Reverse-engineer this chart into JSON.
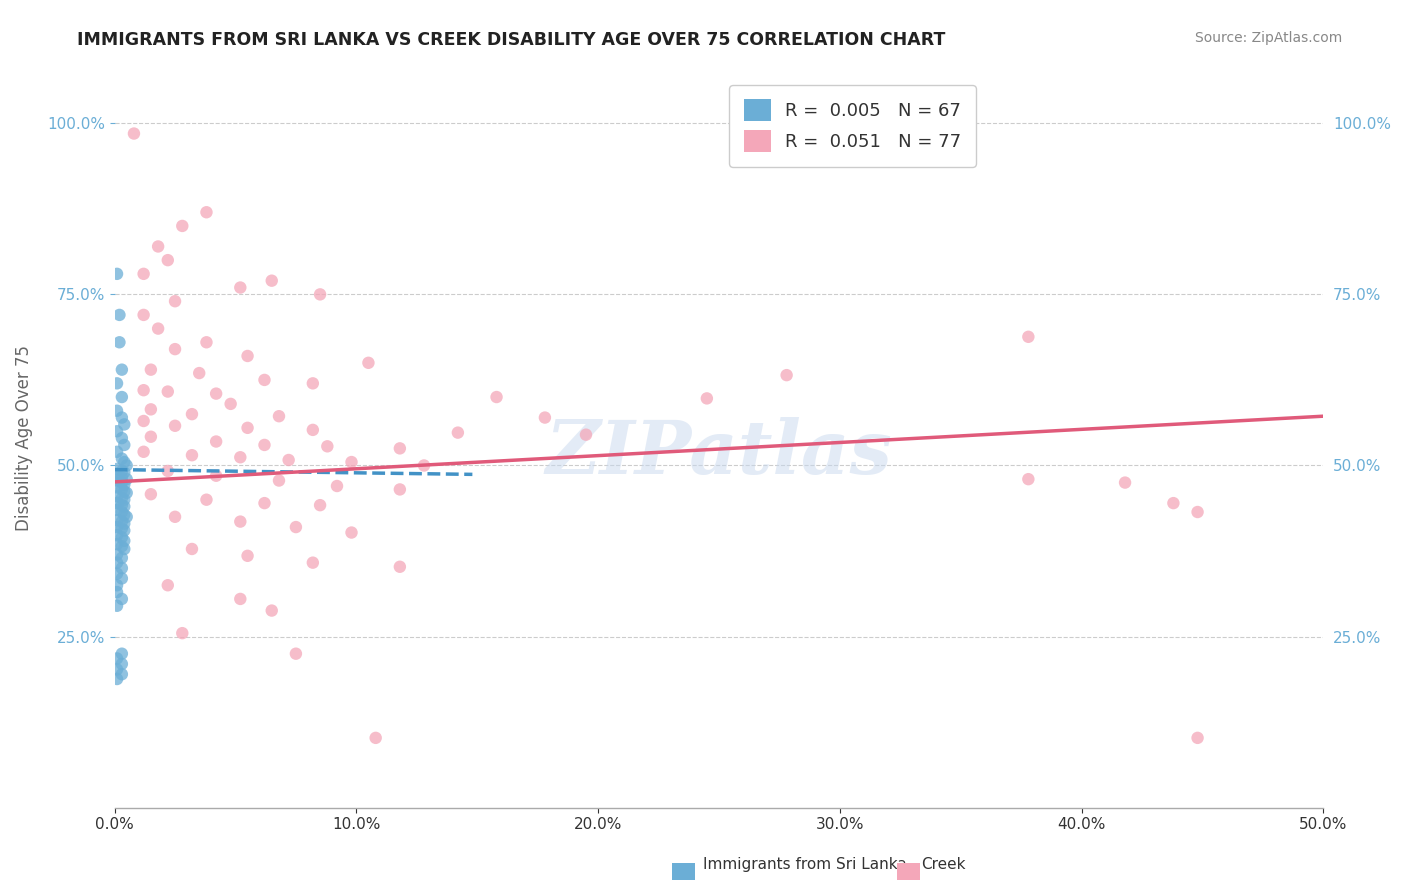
{
  "title": "IMMIGRANTS FROM SRI LANKA VS CREEK DISABILITY AGE OVER 75 CORRELATION CHART",
  "source": "Source: ZipAtlas.com",
  "ylabel": "Disability Age Over 75",
  "xlim": [
    0.0,
    0.5
  ],
  "ylim": [
    0.0,
    1.08
  ],
  "xtick_values": [
    0.0,
    0.1,
    0.2,
    0.3,
    0.4,
    0.5
  ],
  "ytick_values": [
    0.25,
    0.5,
    0.75,
    1.0
  ],
  "legend_entry_1": "R =  0.005   N = 67",
  "legend_entry_2": "R =  0.051   N = 77",
  "watermark": "ZIPatlas",
  "blue_color": "#6baed6",
  "pink_color": "#f4a7b9",
  "blue_line_color": "#4292c6",
  "pink_line_color": "#e05a7a",
  "background_color": "#ffffff",
  "grid_color": "#cccccc",
  "sl_trend_x": [
    0.0,
    0.148
  ],
  "sl_trend_y": [
    0.494,
    0.487
  ],
  "ck_trend_x": [
    0.0,
    0.5
  ],
  "ck_trend_y": [
    0.476,
    0.572
  ],
  "sri_lanka_points": [
    [
      0.001,
      0.78
    ],
    [
      0.002,
      0.72
    ],
    [
      0.002,
      0.68
    ],
    [
      0.003,
      0.64
    ],
    [
      0.001,
      0.62
    ],
    [
      0.003,
      0.6
    ],
    [
      0.001,
      0.58
    ],
    [
      0.003,
      0.57
    ],
    [
      0.004,
      0.56
    ],
    [
      0.001,
      0.55
    ],
    [
      0.003,
      0.54
    ],
    [
      0.004,
      0.53
    ],
    [
      0.001,
      0.52
    ],
    [
      0.003,
      0.51
    ],
    [
      0.004,
      0.505
    ],
    [
      0.005,
      0.5
    ],
    [
      0.001,
      0.495
    ],
    [
      0.003,
      0.492
    ],
    [
      0.004,
      0.49
    ],
    [
      0.001,
      0.485
    ],
    [
      0.003,
      0.482
    ],
    [
      0.005,
      0.48
    ],
    [
      0.001,
      0.478
    ],
    [
      0.003,
      0.475
    ],
    [
      0.004,
      0.472
    ],
    [
      0.001,
      0.468
    ],
    [
      0.003,
      0.465
    ],
    [
      0.004,
      0.462
    ],
    [
      0.005,
      0.46
    ],
    [
      0.001,
      0.455
    ],
    [
      0.003,
      0.452
    ],
    [
      0.004,
      0.45
    ],
    [
      0.001,
      0.445
    ],
    [
      0.003,
      0.442
    ],
    [
      0.004,
      0.44
    ],
    [
      0.001,
      0.435
    ],
    [
      0.003,
      0.432
    ],
    [
      0.004,
      0.428
    ],
    [
      0.005,
      0.425
    ],
    [
      0.001,
      0.42
    ],
    [
      0.003,
      0.418
    ],
    [
      0.004,
      0.415
    ],
    [
      0.001,
      0.41
    ],
    [
      0.003,
      0.408
    ],
    [
      0.004,
      0.405
    ],
    [
      0.001,
      0.398
    ],
    [
      0.003,
      0.395
    ],
    [
      0.004,
      0.39
    ],
    [
      0.001,
      0.385
    ],
    [
      0.003,
      0.382
    ],
    [
      0.004,
      0.378
    ],
    [
      0.001,
      0.37
    ],
    [
      0.003,
      0.365
    ],
    [
      0.001,
      0.358
    ],
    [
      0.003,
      0.35
    ],
    [
      0.001,
      0.342
    ],
    [
      0.003,
      0.335
    ],
    [
      0.001,
      0.325
    ],
    [
      0.001,
      0.315
    ],
    [
      0.003,
      0.305
    ],
    [
      0.001,
      0.295
    ],
    [
      0.003,
      0.225
    ],
    [
      0.001,
      0.218
    ],
    [
      0.003,
      0.21
    ],
    [
      0.001,
      0.202
    ],
    [
      0.003,
      0.195
    ],
    [
      0.001,
      0.188
    ]
  ],
  "creek_points": [
    [
      0.008,
      0.985
    ],
    [
      0.038,
      0.87
    ],
    [
      0.028,
      0.85
    ],
    [
      0.018,
      0.82
    ],
    [
      0.022,
      0.8
    ],
    [
      0.012,
      0.78
    ],
    [
      0.065,
      0.77
    ],
    [
      0.052,
      0.76
    ],
    [
      0.085,
      0.75
    ],
    [
      0.025,
      0.74
    ],
    [
      0.012,
      0.72
    ],
    [
      0.018,
      0.7
    ],
    [
      0.038,
      0.68
    ],
    [
      0.025,
      0.67
    ],
    [
      0.055,
      0.66
    ],
    [
      0.105,
      0.65
    ],
    [
      0.015,
      0.64
    ],
    [
      0.035,
      0.635
    ],
    [
      0.062,
      0.625
    ],
    [
      0.082,
      0.62
    ],
    [
      0.012,
      0.61
    ],
    [
      0.022,
      0.608
    ],
    [
      0.042,
      0.605
    ],
    [
      0.158,
      0.6
    ],
    [
      0.245,
      0.598
    ],
    [
      0.048,
      0.59
    ],
    [
      0.015,
      0.582
    ],
    [
      0.032,
      0.575
    ],
    [
      0.068,
      0.572
    ],
    [
      0.178,
      0.57
    ],
    [
      0.012,
      0.565
    ],
    [
      0.025,
      0.558
    ],
    [
      0.055,
      0.555
    ],
    [
      0.082,
      0.552
    ],
    [
      0.142,
      0.548
    ],
    [
      0.195,
      0.545
    ],
    [
      0.015,
      0.542
    ],
    [
      0.042,
      0.535
    ],
    [
      0.062,
      0.53
    ],
    [
      0.088,
      0.528
    ],
    [
      0.118,
      0.525
    ],
    [
      0.012,
      0.52
    ],
    [
      0.032,
      0.515
    ],
    [
      0.052,
      0.512
    ],
    [
      0.072,
      0.508
    ],
    [
      0.098,
      0.505
    ],
    [
      0.128,
      0.5
    ],
    [
      0.022,
      0.492
    ],
    [
      0.042,
      0.485
    ],
    [
      0.068,
      0.478
    ],
    [
      0.092,
      0.47
    ],
    [
      0.118,
      0.465
    ],
    [
      0.015,
      0.458
    ],
    [
      0.038,
      0.45
    ],
    [
      0.062,
      0.445
    ],
    [
      0.085,
      0.442
    ],
    [
      0.025,
      0.425
    ],
    [
      0.052,
      0.418
    ],
    [
      0.075,
      0.41
    ],
    [
      0.098,
      0.402
    ],
    [
      0.032,
      0.378
    ],
    [
      0.055,
      0.368
    ],
    [
      0.082,
      0.358
    ],
    [
      0.118,
      0.352
    ],
    [
      0.022,
      0.325
    ],
    [
      0.052,
      0.305
    ],
    [
      0.065,
      0.288
    ],
    [
      0.028,
      0.255
    ],
    [
      0.075,
      0.225
    ],
    [
      0.378,
      0.48
    ],
    [
      0.418,
      0.475
    ],
    [
      0.438,
      0.445
    ],
    [
      0.448,
      0.432
    ],
    [
      0.378,
      0.688
    ],
    [
      0.278,
      0.632
    ],
    [
      0.108,
      0.102
    ],
    [
      0.448,
      0.102
    ]
  ]
}
